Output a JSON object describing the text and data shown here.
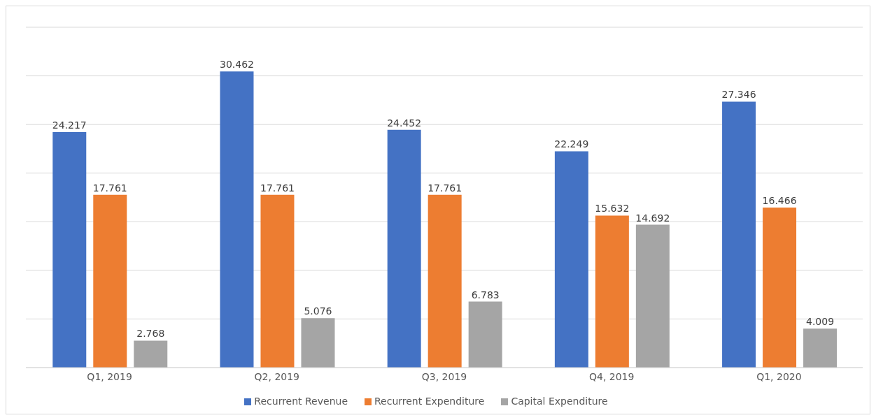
{
  "chart_data": {
    "type": "bar",
    "categories": [
      "Q1, 2019",
      "Q2, 2019",
      "Q3, 2019",
      "Q4, 2019",
      "Q1, 2020"
    ],
    "series": [
      {
        "name": "Recurrent Revenue",
        "color": "#4472c4",
        "values": [
          24.217,
          30.462,
          24.452,
          22.249,
          27.346
        ]
      },
      {
        "name": "Recurrent Expenditure",
        "color": "#ed7d31",
        "values": [
          17.761,
          17.761,
          17.761,
          15.632,
          16.466
        ]
      },
      {
        "name": "Capital Expenditure",
        "color": "#a5a5a5",
        "values": [
          2.768,
          5.076,
          6.783,
          14.692,
          4.009
        ]
      }
    ],
    "ylim": [
      0,
      35
    ],
    "grid": "y",
    "tick_labels": "x",
    "data_labels": true,
    "legend": "bottom"
  }
}
